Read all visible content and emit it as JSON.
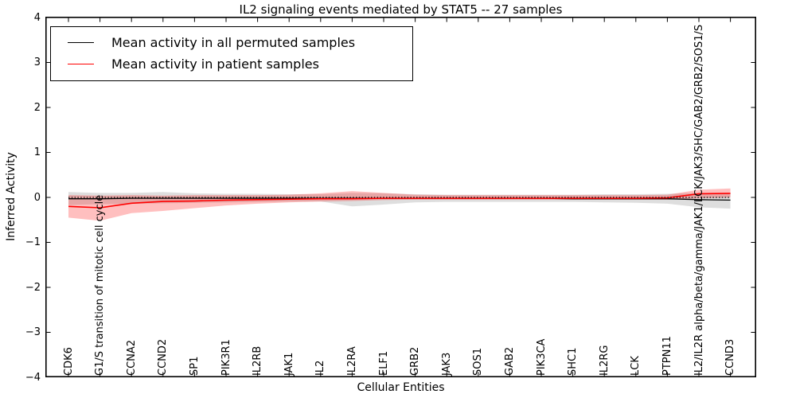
{
  "title": "IL2 signaling events mediated by STAT5 -- 27 samples",
  "axes": {
    "ylabel": "Inferred Activity",
    "xlabel": "Cellular Entities",
    "yticks": [
      "4",
      "3",
      "2",
      "1",
      "0",
      "−1",
      "−2",
      "−3",
      "−4"
    ]
  },
  "legend": {
    "position": "upper left",
    "items": [
      {
        "label": "Mean activity in all permuted samples",
        "color": "#000000"
      },
      {
        "label": "Mean activity in patient samples",
        "color": "#ff0000"
      }
    ]
  },
  "chart_data": {
    "type": "line",
    "title": "IL2 signaling events mediated by STAT5 -- 27 samples",
    "xlabel": "Cellular Entities",
    "ylabel": "Inferred Activity",
    "ylim": [
      -4,
      4
    ],
    "grid": false,
    "zero_reference_line": {
      "y": 0,
      "style": "dotted",
      "color": "#000000"
    },
    "categories": [
      "CDK6",
      "G1/S transition of mitotic cell cycle",
      "CCNA2",
      "CCND2",
      "SP1",
      "PIK3R1",
      "IL2RB",
      "JAK1",
      "IL2",
      "IL2RA",
      "ELF1",
      "GRB2",
      "JAK3",
      "SOS1",
      "GAB2",
      "PIK3CA",
      "SHC1",
      "IL2RG",
      "LCK",
      "PTPN11",
      "IL2/IL2R alpha/beta/gamma/JAK1/LCK/JAK3/SHC/GAB2/GRB2/SOS1/S",
      "CCND3"
    ],
    "series": [
      {
        "name": "Mean activity in all permuted samples",
        "color": "#000000",
        "band_color": "rgba(0,0,0,0.13)",
        "values": [
          -0.03,
          -0.03,
          -0.02,
          -0.02,
          -0.02,
          -0.02,
          -0.02,
          -0.02,
          -0.02,
          -0.02,
          -0.02,
          -0.02,
          -0.02,
          -0.02,
          -0.02,
          -0.02,
          -0.03,
          -0.03,
          -0.03,
          -0.03,
          -0.05,
          -0.06
        ],
        "band_upper": [
          0.12,
          0.1,
          0.1,
          0.12,
          0.09,
          0.08,
          0.08,
          0.07,
          0.07,
          0.1,
          0.09,
          0.07,
          0.06,
          0.06,
          0.06,
          0.06,
          0.06,
          0.07,
          0.07,
          0.08,
          0.1,
          0.1
        ],
        "band_lower": [
          -0.17,
          -0.15,
          -0.14,
          -0.13,
          -0.12,
          -0.11,
          -0.1,
          -0.09,
          -0.09,
          -0.2,
          -0.16,
          -0.11,
          -0.1,
          -0.1,
          -0.1,
          -0.1,
          -0.1,
          -0.11,
          -0.12,
          -0.14,
          -0.22,
          -0.25
        ]
      },
      {
        "name": "Mean activity in patient samples",
        "color": "#ff0000",
        "band_color": "rgba(255,0,0,0.25)",
        "values": [
          -0.2,
          -0.23,
          -0.13,
          -0.09,
          -0.08,
          -0.06,
          -0.05,
          -0.04,
          -0.03,
          -0.03,
          -0.02,
          -0.02,
          -0.02,
          -0.02,
          -0.02,
          -0.02,
          -0.02,
          -0.02,
          -0.02,
          -0.01,
          0.08,
          0.09
        ],
        "band_upper": [
          0.05,
          0.04,
          0.05,
          0.04,
          0.05,
          0.05,
          0.05,
          0.06,
          0.09,
          0.14,
          0.1,
          0.06,
          0.05,
          0.05,
          0.05,
          0.05,
          0.05,
          0.05,
          0.05,
          0.06,
          0.17,
          0.2
        ],
        "band_lower": [
          -0.45,
          -0.52,
          -0.35,
          -0.3,
          -0.24,
          -0.18,
          -0.14,
          -0.11,
          -0.09,
          -0.08,
          -0.06,
          -0.05,
          -0.05,
          -0.05,
          -0.05,
          -0.05,
          -0.05,
          -0.05,
          -0.05,
          -0.05,
          -0.02,
          0.0
        ]
      }
    ]
  }
}
